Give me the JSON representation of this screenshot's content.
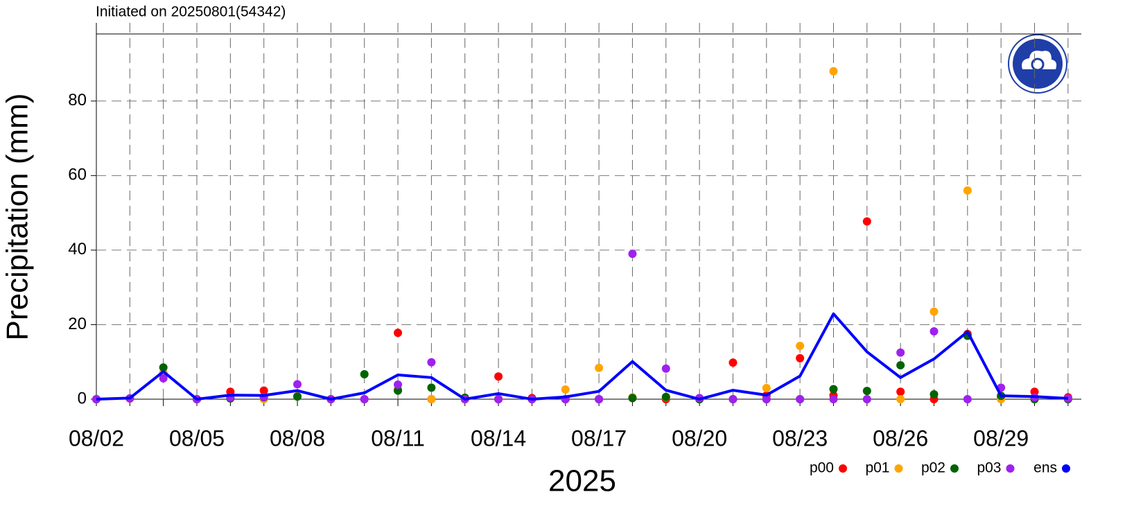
{
  "chart_data": {
    "type": "scatter",
    "title": "Initiated on 20250801(54342)",
    "xlabel": "2025",
    "ylabel": "Precipitation (mm)",
    "categories": [
      "08/02",
      null,
      null,
      "08/05",
      null,
      null,
      "08/08",
      null,
      null,
      "08/11",
      null,
      null,
      "08/14",
      null,
      null,
      "08/17",
      null,
      null,
      "08/20",
      null,
      null,
      "08/23",
      null,
      null,
      "08/26",
      null,
      null,
      "08/29",
      null,
      null
    ],
    "series": [
      {
        "name": "p00",
        "color": "#ff0000",
        "values": [
          0,
          0.2,
          7,
          0,
          2.0,
          2.3,
          0.8,
          0,
          0,
          17.8,
          0,
          0,
          6.1,
          0.3,
          0,
          0,
          0.3,
          0,
          0,
          9.8,
          1.0,
          11.0,
          1.0,
          47.7,
          2.0,
          0,
          17.5,
          0.5,
          2.0,
          0.5
        ]
      },
      {
        "name": "p01",
        "color": "#ffa500",
        "values": [
          0,
          0.2,
          7,
          0,
          0.5,
          0,
          0.8,
          0,
          0,
          2.6,
          0,
          0,
          0,
          0,
          2.6,
          8.4,
          0.5,
          0.5,
          0,
          0,
          3.0,
          14.3,
          88.0,
          0,
          0,
          23.5,
          56.0,
          0,
          0,
          0
        ]
      },
      {
        "name": "p02",
        "color": "#006400",
        "values": [
          0,
          0.2,
          8.5,
          0,
          0.2,
          0.5,
          0.7,
          0,
          6.7,
          2.3,
          3.1,
          0.4,
          0,
          0,
          0,
          0,
          0.3,
          0.6,
          0,
          0,
          0,
          0,
          2.7,
          2.2,
          9.1,
          1.3,
          17.0,
          0.9,
          0,
          0
        ]
      },
      {
        "name": "p03",
        "color": "#a020f0",
        "values": [
          0,
          0.2,
          5.6,
          0,
          0.5,
          0.6,
          4.0,
          0,
          0,
          3.9,
          9.9,
          0,
          0,
          0,
          0,
          0,
          39.0,
          8.2,
          0.3,
          0,
          0,
          0,
          0,
          0,
          12.5,
          18.2,
          0,
          3.1,
          0.5,
          0.2
        ]
      },
      {
        "name": "ens",
        "color": "#0000ff",
        "line": true,
        "values": [
          0,
          0.3,
          7.4,
          0,
          1.1,
          1.0,
          2.3,
          0,
          1.7,
          6.5,
          5.8,
          0,
          1.5,
          0,
          0.6,
          2.1,
          10.1,
          2.4,
          0,
          2.4,
          1.1,
          6.2,
          22.9,
          12.7,
          5.8,
          10.8,
          18.1,
          0.9,
          0.7,
          0.2
        ]
      }
    ],
    "ylim": [
      0,
      98
    ],
    "yticks": [
      0,
      20,
      40,
      60,
      80
    ],
    "grid": true,
    "legend": "bottom-right"
  }
}
